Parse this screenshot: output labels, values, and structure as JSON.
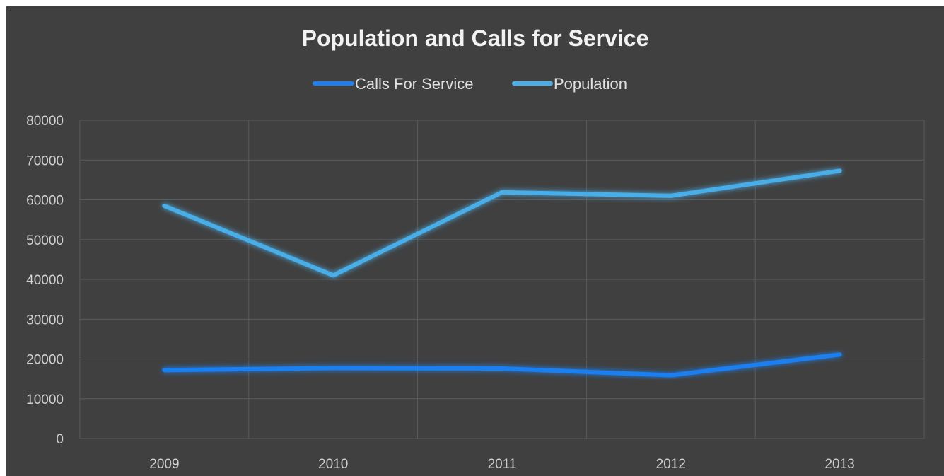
{
  "chart_data": {
    "type": "line",
    "title": "Population and Calls for Service",
    "xlabel": "",
    "ylabel": "",
    "categories": [
      "2009",
      "2010",
      "2011",
      "2012",
      "2013"
    ],
    "ylim": [
      0,
      80000
    ],
    "yticks": [
      "0",
      "10000",
      "20000",
      "30000",
      "40000",
      "50000",
      "60000",
      "70000",
      "80000"
    ],
    "grid": true,
    "legend_position": "top",
    "series": [
      {
        "name": "Calls For Service",
        "color": "#1f7ff0",
        "values": [
          17200,
          17700,
          17600,
          15900,
          21100
        ]
      },
      {
        "name": "Population",
        "color": "#4aaee8",
        "values": [
          58500,
          41000,
          61900,
          61000,
          67300
        ]
      }
    ]
  },
  "colors": {
    "background": "#404040",
    "gridline": "#5a5a5a",
    "text": "#d0d0d0"
  }
}
